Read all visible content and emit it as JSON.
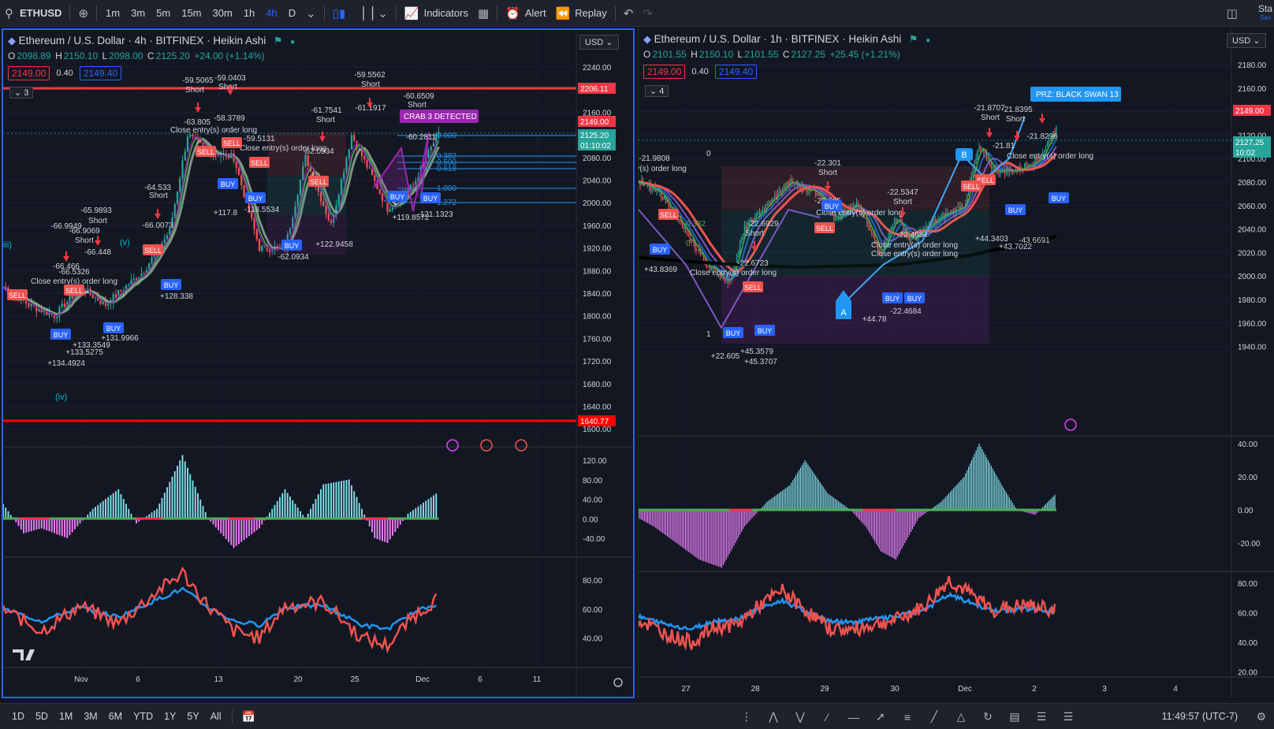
{
  "toolbar": {
    "symbol": "ETHUSD",
    "timeframes": [
      "1m",
      "3m",
      "5m",
      "15m",
      "30m",
      "1h",
      "4h",
      "D"
    ],
    "active_timeframe": "4h",
    "indicators_label": "Indicators",
    "alert_label": "Alert",
    "replay_label": "Replay",
    "right_label": "Sta",
    "right_sub": "Sav"
  },
  "left_chart": {
    "title": "Ethereum / U.S. Dollar · 4h · BITFINEX · Heikin Ashi",
    "ohlc": {
      "o_label": "O",
      "o": "2098.89",
      "h_label": "H",
      "h": "2150.10",
      "l_label": "L",
      "l": "2098.00",
      "c_label": "C",
      "c": "2125.20",
      "chg": "+24.00 (+1.14%)"
    },
    "bid": "2149.00",
    "spread": "0.40",
    "ask": "2149.40",
    "collapse_count": "3",
    "currency": "USD",
    "price_ticks": [
      "2240.00",
      "2200.00",
      "2160.00",
      "2120.00",
      "2080.00",
      "2040.00",
      "2000.00",
      "1960.00",
      "1920.00",
      "1880.00",
      "1840.00",
      "1800.00",
      "1760.00",
      "1720.00",
      "1680.00",
      "1640.00",
      "1600.00"
    ],
    "price_labels": {
      "top_line": "2206.11",
      "last": "2149.00",
      "close": "2125.20",
      "countdown": "01:10:02",
      "bottom_line": "1640.77"
    },
    "osc_ticks": [
      "120.00",
      "80.00",
      "40.00",
      "0.00",
      "-40.00"
    ],
    "rsi_ticks": [
      "80.00",
      "60.00",
      "40.00"
    ],
    "time_ticks": [
      "Nov",
      "6",
      "13",
      "20",
      "25",
      "Dec",
      "6",
      "11"
    ],
    "crab_label": "CRAB 3 DETECTED",
    "fib_labels": [
      "0.000",
      "0.382",
      "0.500",
      "0.618",
      "1.000",
      "1.272"
    ],
    "wave_labels": [
      "iii)",
      "(v)",
      "(iv)"
    ],
    "annotations": [
      "-59.5065",
      "Short",
      "-59.0403",
      "Short",
      "-58.3789",
      "-59.5562",
      "Short",
      "-63.805",
      "Close entry(s) order long",
      "-61.7541",
      "Short",
      "-61.1917",
      "-60.6509",
      "Short",
      "-60.2811",
      "-59.5131",
      "Close entry(s) order long",
      "-62.0934",
      "-64.533",
      "Short",
      "-66.0073",
      "-65.9893",
      "Short",
      "-66.9949",
      "-66.9069",
      "Short",
      "-66.448",
      "-66.466",
      "-66.5326",
      "Close entry(s) order long",
      "+117.8",
      "-118.5534",
      "+122.9458",
      "-62.0934",
      "+119.8572",
      "-121.1323",
      "+128.338",
      "+131.9966",
      "+133.3549",
      "+133.5275",
      "+134.4924"
    ],
    "signal_labels": {
      "sell": "SELL",
      "buy": "BUY",
      "long": "long"
    }
  },
  "right_chart": {
    "title": "Ethereum / U.S. Dollar · 1h · BITFINEX · Heikin Ashi",
    "ohlc": {
      "o_label": "O",
      "o": "2101.55",
      "h_label": "H",
      "h": "2150.10",
      "l_label": "L",
      "l": "2101.55",
      "c_label": "C",
      "c": "2127.25",
      "chg": "+25.45 (+1.21%)"
    },
    "bid": "2149.00",
    "spread": "0.40",
    "ask": "2149.40",
    "collapse_count": "4",
    "currency": "USD",
    "price_ticks": [
      "2180.00",
      "2160.00",
      "2140.00",
      "2120.00",
      "2100.00",
      "2080.00",
      "2060.00",
      "2040.00",
      "2020.00",
      "2000.00",
      "1980.00",
      "1960.00",
      "1940.00"
    ],
    "price_labels": {
      "last": "2149.00",
      "close": "2127.25",
      "countdown": "10:02"
    },
    "osc_ticks": [
      "40.00",
      "20.00",
      "0.00",
      "-20.00"
    ],
    "rsi_ticks": [
      "80.00",
      "60.00",
      "40.00",
      "20.00"
    ],
    "time_ticks": [
      "27",
      "28",
      "29",
      "30",
      "Dec",
      "2",
      "3",
      "4"
    ],
    "prz_label": "PRZ: BLACK SWAN 13",
    "abc_labels": [
      "A",
      "B"
    ],
    "fib_labels": [
      "0",
      "0.382",
      "0.5",
      "1"
    ],
    "annotations": [
      "-21.9808",
      "entry(s) order long",
      "-22.301",
      "Short",
      "-22.665",
      "Close entry(s) order long",
      "-22.6929",
      "-22.5347",
      "Short",
      "Short",
      "-22.4684",
      "Close entry(s) order long",
      "-22.6723",
      "Close entry(s) order long",
      "Close entry(s) order long",
      "+43.8369",
      "-21.8707",
      "Short",
      "-21.8395",
      "Short",
      "-21.8296",
      "-21.81",
      "Close entry(s) order long",
      "+44.3403",
      "+43.7022",
      "-43.6691",
      "+22.605",
      "+45.3579",
      "+45.3707",
      "+44.78",
      "-22.4684"
    ],
    "signal_labels": {
      "sell": "SELL",
      "buy": "BUY",
      "long": "long"
    }
  },
  "bottom": {
    "ranges": [
      "1D",
      "5D",
      "1M",
      "3M",
      "6M",
      "YTD",
      "1Y",
      "5Y",
      "All"
    ],
    "clock": "11:49:57 (UTC-7)"
  },
  "colors": {
    "bg": "#131722",
    "up": "#26a69a",
    "down": "#ef5350",
    "accent": "#2962ff",
    "red_line": "#f23645"
  }
}
